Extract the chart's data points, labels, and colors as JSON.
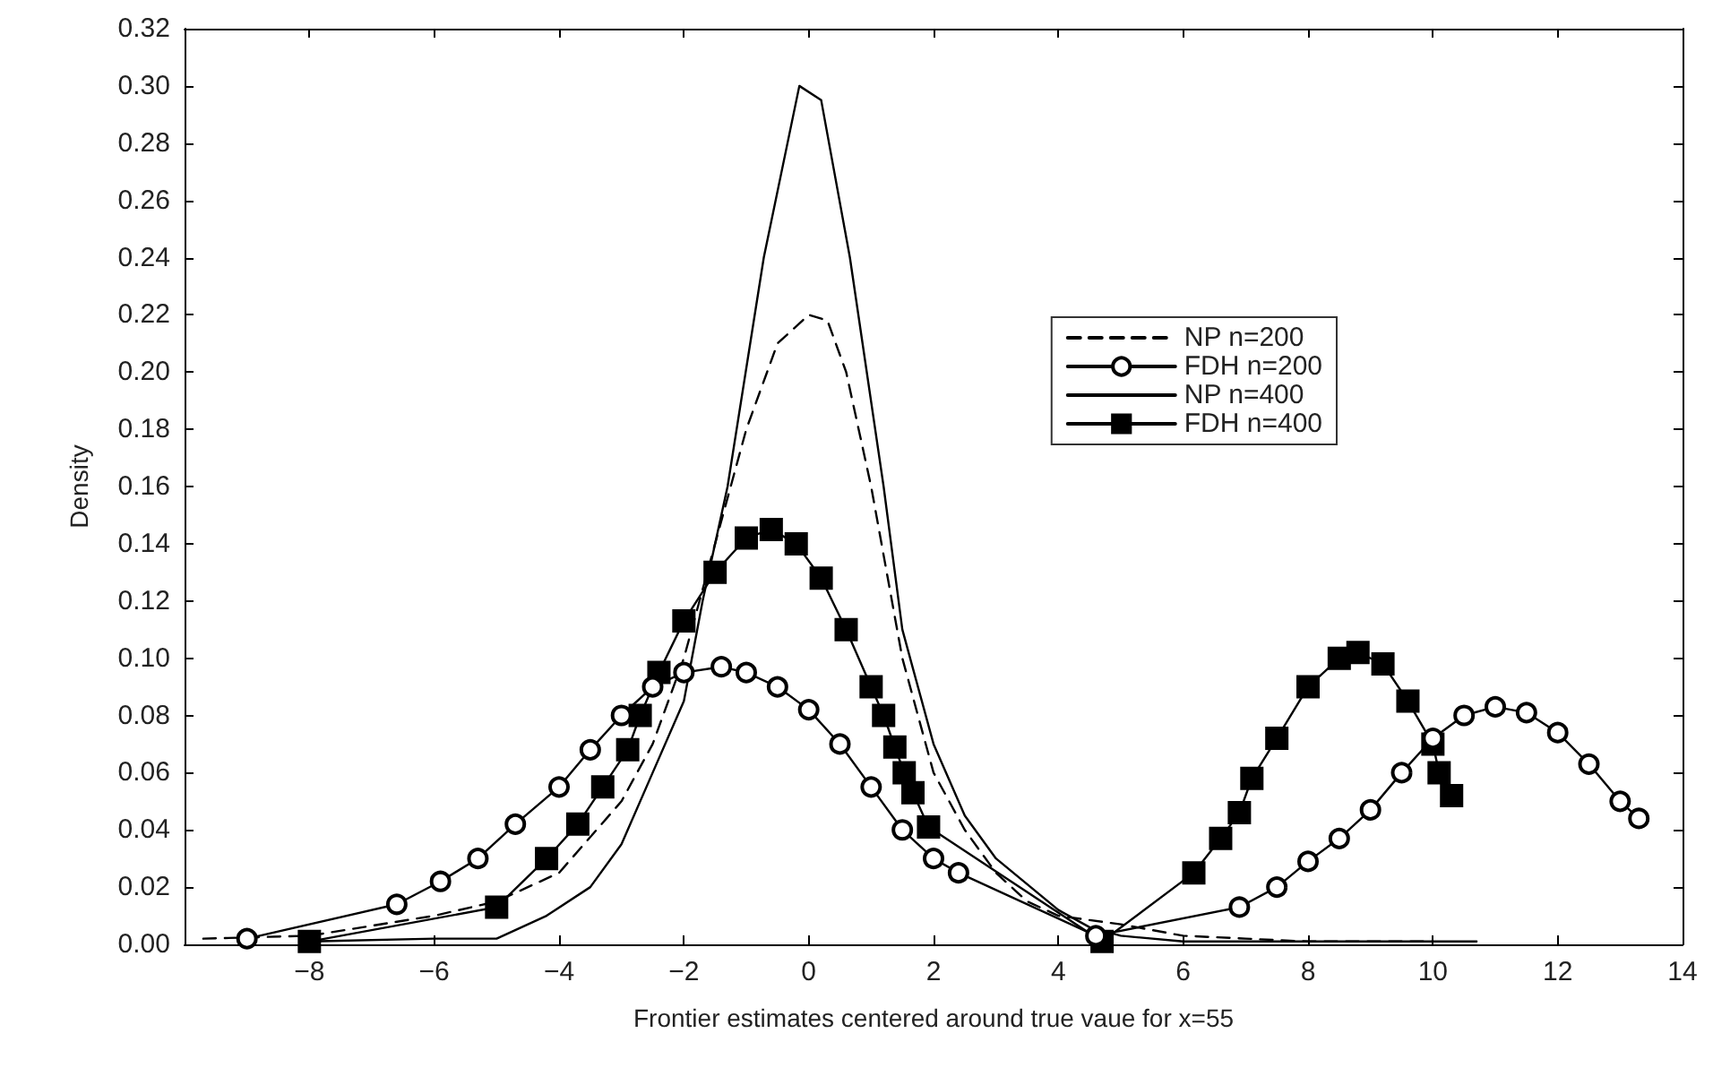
{
  "chart_data": {
    "type": "line",
    "xlabel": "Frontier estimates centered around true vaue for x=55",
    "ylabel": "Density",
    "xlim": [
      -10,
      14
    ],
    "xticks": [
      {
        "value": -10,
        "label": null
      },
      -8,
      -6,
      -4,
      -2,
      0,
      2,
      4,
      6,
      8,
      10,
      12,
      14
    ],
    "ylim": [
      0,
      0.32
    ],
    "yticks": [
      {
        "value": 0,
        "label": "0.00"
      },
      {
        "value": 0.02,
        "label": "0.02"
      },
      {
        "value": 0.04,
        "label": "0.04"
      },
      {
        "value": 0.06,
        "label": "0.06"
      },
      {
        "value": 0.08,
        "label": "0.08"
      },
      {
        "value": 0.1,
        "label": "0.10"
      },
      {
        "value": 0.12,
        "label": "0.12"
      },
      {
        "value": 0.14,
        "label": "0.14"
      },
      {
        "value": 0.16,
        "label": "0.16"
      },
      {
        "value": 0.18,
        "label": "0.18"
      },
      {
        "value": 0.2,
        "label": "0.20"
      },
      {
        "value": 0.22,
        "label": "0.22"
      },
      {
        "value": 0.24,
        "label": "0.24"
      },
      {
        "value": 0.26,
        "label": "0.26"
      },
      {
        "value": 0.28,
        "label": "0.28"
      },
      {
        "value": 0.3,
        "label": "0.30"
      },
      {
        "value": 0.32,
        "label": "0.32"
      }
    ],
    "grid": false,
    "legend": "top right",
    "series": [
      {
        "name": "NP n=200",
        "color": "#000000",
        "line_style": "dashed",
        "marker": "none",
        "x": [
          -9.7,
          -8,
          -6,
          -5,
          -4,
          -3,
          -2.5,
          -2,
          -1.5,
          -1,
          -0.5,
          0,
          0.3,
          0.6,
          1,
          1.5,
          2,
          2.5,
          3,
          3.5,
          4,
          5,
          6,
          7,
          8,
          10
        ],
        "values": [
          0.002,
          0.003,
          0.01,
          0.015,
          0.025,
          0.05,
          0.07,
          0.1,
          0.14,
          0.18,
          0.21,
          0.22,
          0.218,
          0.2,
          0.16,
          0.1,
          0.06,
          0.04,
          0.025,
          0.015,
          0.01,
          0.007,
          0.003,
          0.002,
          0.001,
          0.001
        ]
      },
      {
        "name": "FDH n=200",
        "color": "#000000",
        "line_style": "solid",
        "marker": "circle",
        "x": [
          -9,
          -6.6,
          -5.9,
          -5.3,
          -4.7,
          -4,
          -3.5,
          -3,
          -2.5,
          -2,
          -1.4,
          -1,
          -0.5,
          0,
          0.5,
          1,
          1.5,
          2,
          2.4,
          4.6,
          6.9,
          7.5,
          8,
          8.5,
          9,
          9.5,
          10,
          10.5,
          11,
          11.5,
          12,
          12.5,
          13,
          13.3
        ],
        "values": [
          0.002,
          0.014,
          0.022,
          0.03,
          0.042,
          0.055,
          0.068,
          0.08,
          0.09,
          0.095,
          0.097,
          0.095,
          0.09,
          0.082,
          0.07,
          0.055,
          0.04,
          0.03,
          0.025,
          0.003,
          0.013,
          0.02,
          0.029,
          0.037,
          0.047,
          0.06,
          0.072,
          0.08,
          0.083,
          0.081,
          0.074,
          0.063,
          0.05,
          0.044
        ]
      },
      {
        "name": "NP n=400",
        "color": "#000000",
        "line_style": "solid",
        "marker": "none",
        "x": [
          -8,
          -6,
          -5,
          -4.2,
          -3.5,
          -3,
          -2.5,
          -2,
          -1.7,
          -1.3,
          -0.72,
          -0.15,
          0.2,
          0.66,
          1.2,
          1.5,
          2,
          2.5,
          3,
          4,
          4.5,
          5,
          6,
          7,
          10.7
        ],
        "values": [
          0.001,
          0.002,
          0.002,
          0.01,
          0.02,
          0.035,
          0.06,
          0.085,
          0.12,
          0.16,
          0.24,
          0.3,
          0.295,
          0.24,
          0.16,
          0.11,
          0.07,
          0.045,
          0.03,
          0.012,
          0.006,
          0.003,
          0.001,
          0.001,
          0.001
        ]
      },
      {
        "name": "FDH n=400",
        "color": "#000000",
        "line_style": "solid",
        "marker": "square",
        "x": [
          -8,
          -5,
          -4.2,
          -3.7,
          -3.3,
          -2.9,
          -2.7,
          -2.4,
          -2,
          -1.5,
          -1,
          -0.6,
          -0.2,
          0.2,
          0.6,
          1,
          1.2,
          1.38,
          1.53,
          1.67,
          1.92,
          4.7,
          6.17,
          6.6,
          6.9,
          7.1,
          7.5,
          8,
          8.5,
          8.8,
          9.2,
          9.6,
          10,
          10.1,
          10.3
        ],
        "values": [
          0.001,
          0.013,
          0.03,
          0.042,
          0.055,
          0.068,
          0.08,
          0.095,
          0.113,
          0.13,
          0.142,
          0.145,
          0.14,
          0.128,
          0.11,
          0.09,
          0.08,
          0.069,
          0.06,
          0.053,
          0.041,
          0.001,
          0.025,
          0.037,
          0.046,
          0.058,
          0.072,
          0.09,
          0.1,
          0.102,
          0.098,
          0.085,
          0.07,
          0.06,
          0.052
        ]
      }
    ]
  }
}
